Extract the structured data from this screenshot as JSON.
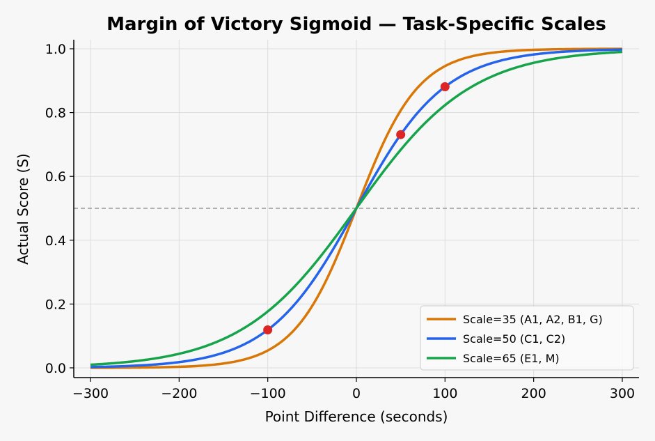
{
  "chart_data": {
    "type": "line",
    "title": "Margin of Victory Sigmoid — Task-Specific Scales",
    "xlabel": "Point Difference (seconds)",
    "ylabel": "Actual Score (S)",
    "xlim": [
      -300,
      300
    ],
    "ylim": [
      0,
      1
    ],
    "xticks": [
      -300,
      -200,
      -100,
      0,
      100,
      200,
      300
    ],
    "xtick_labels": [
      "−300",
      "−200",
      "−100",
      "0",
      "100",
      "200",
      "300"
    ],
    "yticks": [
      0.0,
      0.2,
      0.4,
      0.6,
      0.8,
      1.0
    ],
    "ytick_labels": [
      "0.0",
      "0.2",
      "0.4",
      "0.6",
      "0.8",
      "1.0"
    ],
    "grid": true,
    "reference_line": {
      "y": 0.5,
      "style": "dashed",
      "color": "#999999"
    },
    "legend_position": "bottom-right",
    "series": [
      {
        "name": "Scale=35 (A1, A2, B1, G)",
        "scale": 35,
        "color": "#d97706"
      },
      {
        "name": "Scale=50 (C1, C2)",
        "scale": 50,
        "color": "#2563eb"
      },
      {
        "name": "Scale=65 (E1, M)",
        "scale": 65,
        "color": "#16a34a"
      }
    ],
    "highlight_points": {
      "color": "#dc2626",
      "points": [
        {
          "x": -100,
          "y": 0.119
        },
        {
          "x": 50,
          "y": 0.731
        },
        {
          "x": 100,
          "y": 0.881
        }
      ]
    }
  }
}
